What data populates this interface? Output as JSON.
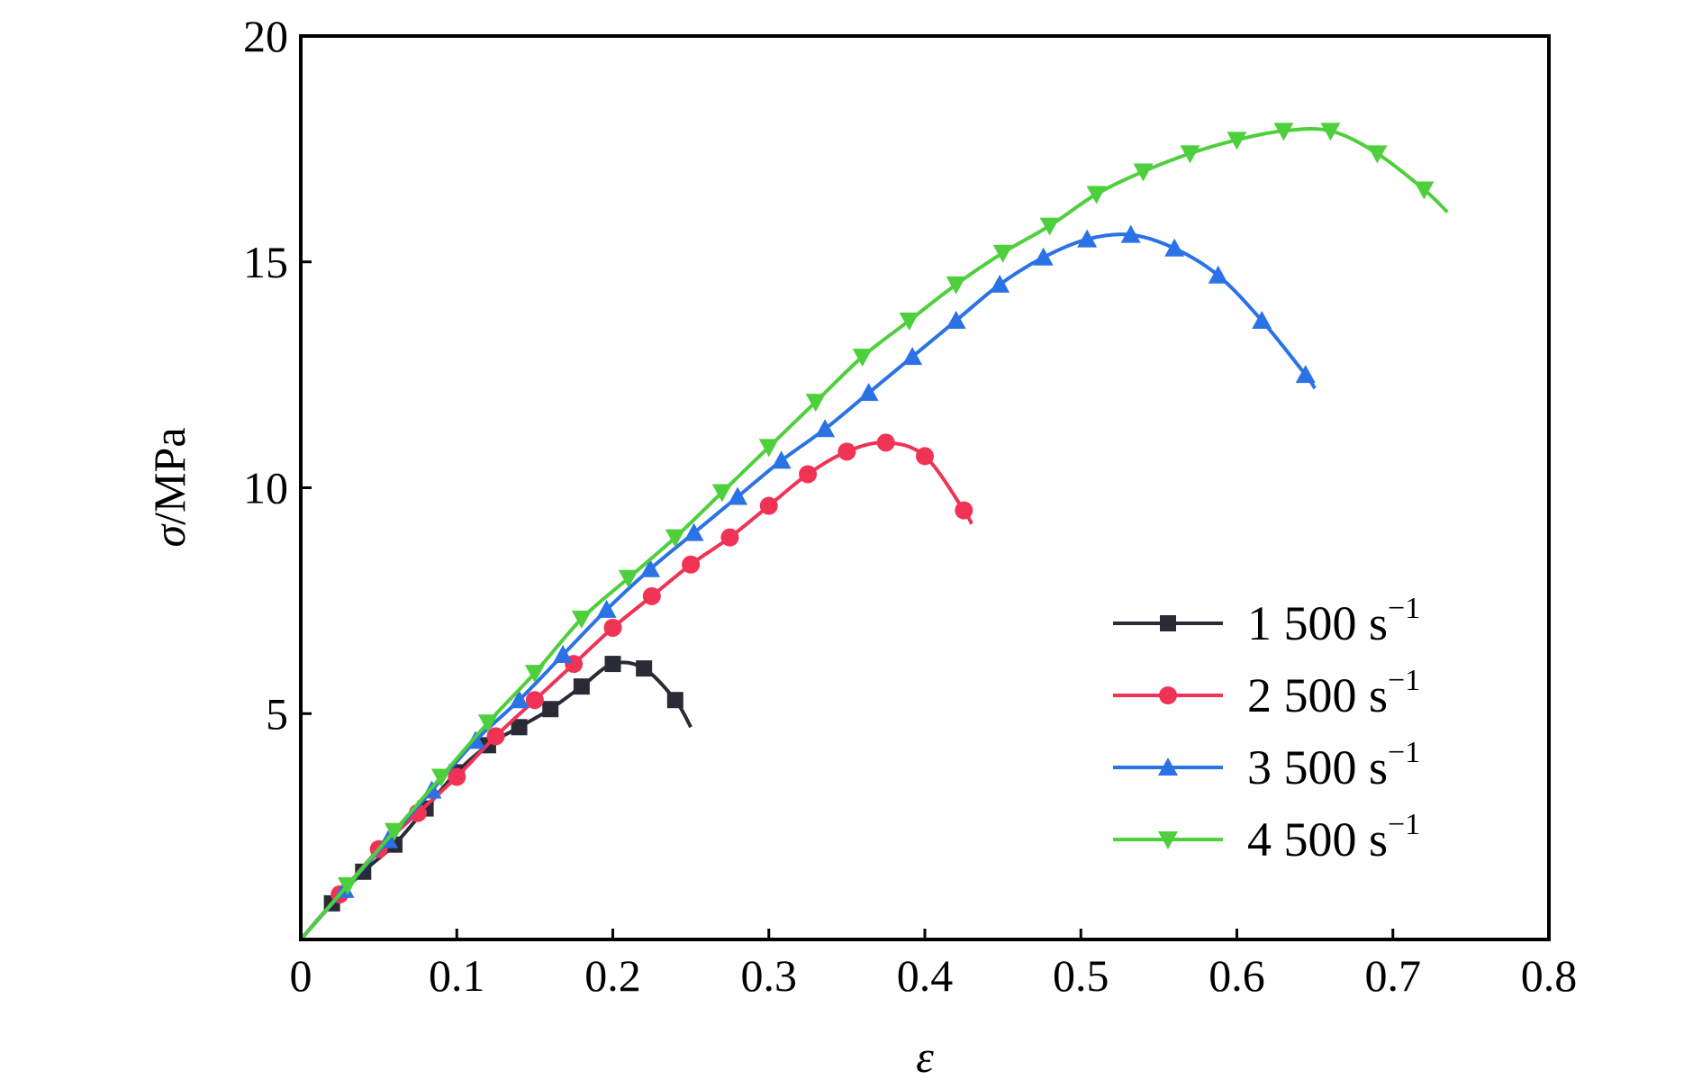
{
  "chart_data": {
    "type": "line",
    "title": "",
    "xlabel": "ε",
    "ylabel_symbol": "σ",
    "ylabel_unit": "/MPa",
    "xlim": [
      0,
      0.8
    ],
    "ylim": [
      0,
      20
    ],
    "x_ticks": [
      "0",
      "0.1",
      "0.2",
      "0.3",
      "0.4",
      "0.5",
      "0.6",
      "0.7",
      "0.8"
    ],
    "y_ticks": [
      "5",
      "10",
      "15",
      "20"
    ],
    "grid": false,
    "legend_position": "lower-right",
    "series": [
      {
        "name": "1 500 s⁻¹",
        "legend_main": "1 500 s",
        "legend_sup": "−1",
        "color": "#2b2b38",
        "marker": "square",
        "x": [
          0,
          0.02,
          0.04,
          0.06,
          0.08,
          0.1,
          0.12,
          0.14,
          0.16,
          0.18,
          0.2,
          0.22,
          0.24,
          0.25
        ],
        "y": [
          0,
          0.8,
          1.5,
          2.1,
          2.9,
          3.7,
          4.3,
          4.7,
          5.1,
          5.6,
          6.1,
          6.0,
          5.3,
          4.7
        ]
      },
      {
        "name": "2 500 s⁻¹",
        "legend_main": "2 500 s",
        "legend_sup": "−1",
        "color": "#f03355",
        "marker": "circle",
        "x": [
          0,
          0.025,
          0.05,
          0.075,
          0.1,
          0.125,
          0.15,
          0.175,
          0.2,
          0.225,
          0.25,
          0.275,
          0.3,
          0.325,
          0.35,
          0.375,
          0.4,
          0.425,
          0.43
        ],
        "y": [
          0,
          1.0,
          2.0,
          2.8,
          3.6,
          4.5,
          5.3,
          6.1,
          6.9,
          7.6,
          8.3,
          8.9,
          9.6,
          10.3,
          10.8,
          11.0,
          10.7,
          9.5,
          9.2
        ]
      },
      {
        "name": "3 500 s⁻¹",
        "legend_main": "3 500 s",
        "legend_sup": "−1",
        "color": "#2a72e6",
        "marker": "triangle-up",
        "x": [
          0,
          0.028,
          0.056,
          0.084,
          0.112,
          0.14,
          0.168,
          0.196,
          0.224,
          0.252,
          0.28,
          0.308,
          0.336,
          0.364,
          0.392,
          0.42,
          0.448,
          0.476,
          0.504,
          0.532,
          0.56,
          0.588,
          0.616,
          0.644,
          0.65
        ],
        "y": [
          0,
          1.1,
          2.2,
          3.3,
          4.4,
          5.3,
          6.3,
          7.3,
          8.2,
          9.0,
          9.8,
          10.6,
          11.3,
          12.1,
          12.9,
          13.7,
          14.5,
          15.1,
          15.5,
          15.6,
          15.3,
          14.7,
          13.7,
          12.5,
          12.2
        ]
      },
      {
        "name": "4 500 s⁻¹",
        "legend_main": "4 500 s",
        "legend_sup": "−1",
        "color": "#4ecf3c",
        "marker": "triangle-down",
        "x": [
          0,
          0.03,
          0.06,
          0.09,
          0.12,
          0.15,
          0.18,
          0.21,
          0.24,
          0.27,
          0.3,
          0.33,
          0.36,
          0.39,
          0.42,
          0.45,
          0.48,
          0.51,
          0.54,
          0.57,
          0.6,
          0.63,
          0.66,
          0.69,
          0.72,
          0.735
        ],
        "y": [
          0,
          1.2,
          2.4,
          3.6,
          4.8,
          5.9,
          7.1,
          8.0,
          8.9,
          9.9,
          10.9,
          11.9,
          12.9,
          13.7,
          14.5,
          15.2,
          15.8,
          16.5,
          17.0,
          17.4,
          17.7,
          17.9,
          17.9,
          17.4,
          16.6,
          16.1
        ]
      }
    ]
  }
}
